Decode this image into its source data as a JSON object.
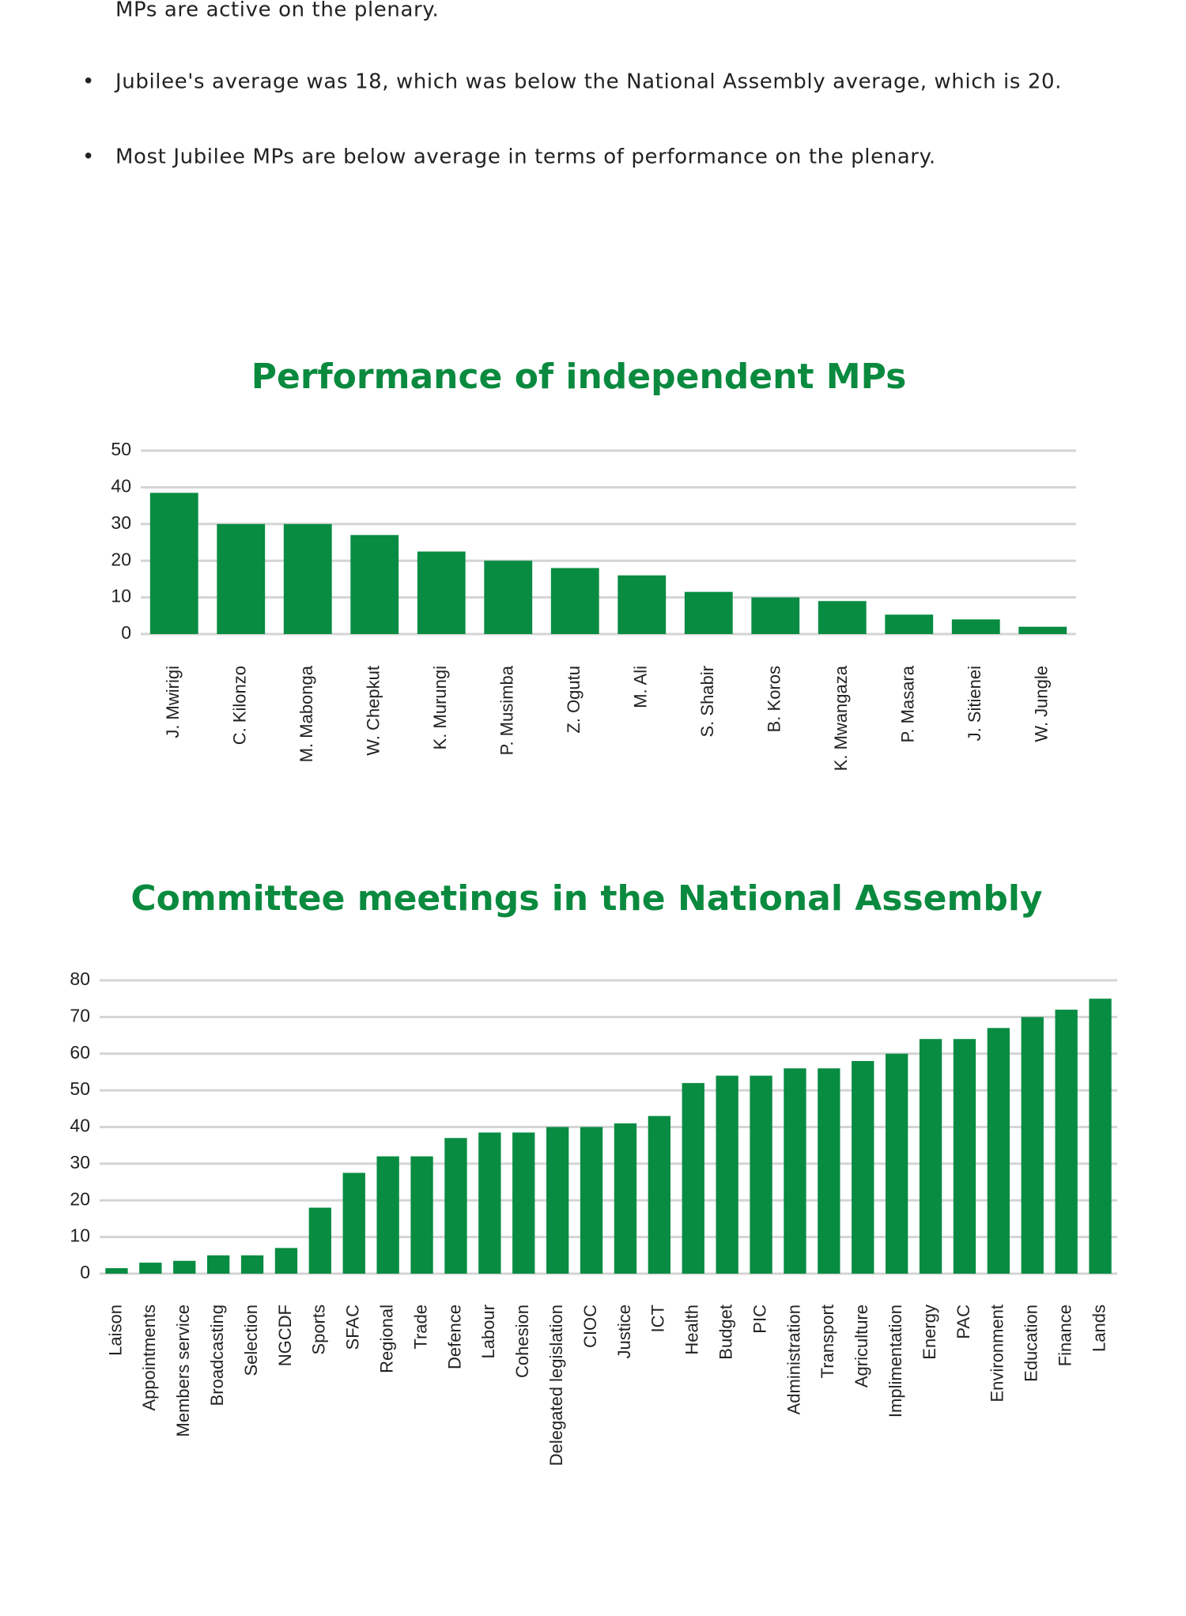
{
  "bullets": [
    "MPs are active on the plenary.",
    "Jubilee's average was 18, which was below the National Assembly average, which is 20.",
    "Most Jubilee MPs are below average in terms of performance on the plenary."
  ],
  "chart_data": [
    {
      "type": "bar",
      "title": "Performance of independent MPs",
      "categories": [
        "J. Mwirigi",
        "C. Kilonzo",
        "M. Mabonga",
        "W. Chepkut",
        "K. Murungi",
        "P. Musimba",
        "Z. Ogutu",
        "M. Ali",
        "S. Shabir",
        "B. Koros",
        "K. Mwangaza",
        "P. Masara",
        "J. Sitienei",
        "W. Jungle"
      ],
      "values": [
        38.5,
        30,
        30,
        27,
        22.5,
        20,
        18,
        16,
        11.5,
        10,
        9,
        5.3,
        4,
        2
      ],
      "color": "#078c42",
      "ylim": [
        0,
        50
      ],
      "yticks": [
        0,
        10,
        20,
        30,
        40,
        50
      ],
      "grid": true
    },
    {
      "type": "bar",
      "title": "Committee meetings in the National Assembly",
      "categories": [
        "Laison",
        "Appointments",
        "Members service",
        "Broadcasting",
        "Selection",
        "NGCDF",
        "Sports",
        "SFAC",
        "Regional",
        "Trade",
        "Defence",
        "Labour",
        "Cohesion",
        "Delegated legislation",
        "CIOC",
        "Justice",
        "ICT",
        "Health",
        "Budget",
        "PIC",
        "Administration",
        "Transport",
        "Agriculture",
        "Implimentation",
        "Energy",
        "PAC",
        "Environment",
        "Education",
        "Finance",
        "Lands"
      ],
      "values": [
        1.5,
        3,
        3.5,
        5,
        5,
        7,
        18,
        27.5,
        32,
        32,
        37,
        38.5,
        38.5,
        40,
        40,
        41,
        43,
        52,
        54,
        54,
        56,
        56,
        58,
        60,
        64,
        64,
        67,
        70,
        72,
        75
      ],
      "color": "#078c42",
      "ylim": [
        0,
        80
      ],
      "yticks": [
        0,
        10,
        20,
        30,
        40,
        50,
        60,
        70,
        80
      ],
      "grid": true
    }
  ]
}
